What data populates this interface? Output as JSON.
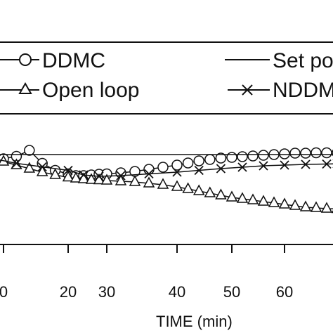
{
  "chart_data": {
    "type": "line",
    "xlabel": "TIME (min)",
    "xticks": [
      "0",
      "20",
      "30",
      "40",
      "50",
      "60"
    ],
    "xlim": [
      8,
      70
    ],
    "legend": {
      "placement": "top",
      "entries": [
        "DDMC",
        "Set po",
        "Open loop",
        "NDDM"
      ]
    },
    "series": [
      {
        "name": "DDMC",
        "marker": "circle",
        "x": [
          8,
          10,
          12,
          14,
          16,
          18,
          20,
          22,
          24,
          26,
          28,
          30,
          32,
          34,
          36,
          38,
          40,
          42,
          44,
          46,
          48,
          50,
          52,
          54,
          56,
          58,
          60,
          62,
          64,
          66,
          68,
          70
        ],
        "y": [
          0.0,
          -0.12,
          -0.05,
          0.12,
          -0.25,
          -0.45,
          -0.55,
          -0.6,
          -0.6,
          -0.58,
          -0.56,
          -0.55,
          -0.52,
          -0.48,
          -0.42,
          -0.36,
          -0.3,
          -0.24,
          -0.18,
          -0.14,
          -0.1,
          -0.08,
          -0.06,
          -0.04,
          -0.02,
          0.0,
          0.02,
          0.04,
          0.04,
          0.05,
          0.05,
          0.05
        ]
      },
      {
        "name": "Set po",
        "marker": "none",
        "x": [
          8,
          70
        ],
        "y": [
          0.0,
          0.0
        ]
      },
      {
        "name": "Open loop",
        "marker": "triangle",
        "x": [
          8,
          10,
          12,
          14,
          16,
          18,
          20,
          22,
          24,
          26,
          28,
          30,
          32,
          34,
          36,
          38,
          40,
          42,
          44,
          46,
          48,
          50,
          52,
          54,
          56,
          58,
          60,
          62,
          64,
          66,
          68,
          70
        ],
        "y": [
          -0.15,
          -0.2,
          -0.3,
          -0.4,
          -0.5,
          -0.58,
          -0.65,
          -0.68,
          -0.7,
          -0.72,
          -0.73,
          -0.74,
          -0.76,
          -0.78,
          -0.82,
          -0.86,
          -0.92,
          -0.98,
          -1.04,
          -1.1,
          -1.16,
          -1.22,
          -1.26,
          -1.3,
          -1.34,
          -1.38,
          -1.42,
          -1.46,
          -1.5,
          -1.52,
          -1.54,
          -1.55
        ]
      },
      {
        "name": "NDDM",
        "marker": "x",
        "x": [
          8,
          12,
          16,
          20,
          24,
          28,
          32,
          36,
          40,
          44,
          48,
          52,
          56,
          60,
          64,
          68,
          70
        ],
        "y": [
          -0.1,
          -0.25,
          -0.35,
          -0.45,
          -0.58,
          -0.62,
          -0.6,
          -0.55,
          -0.5,
          -0.45,
          -0.4,
          -0.36,
          -0.32,
          -0.3,
          -0.28,
          -0.27,
          -0.26
        ]
      }
    ]
  }
}
